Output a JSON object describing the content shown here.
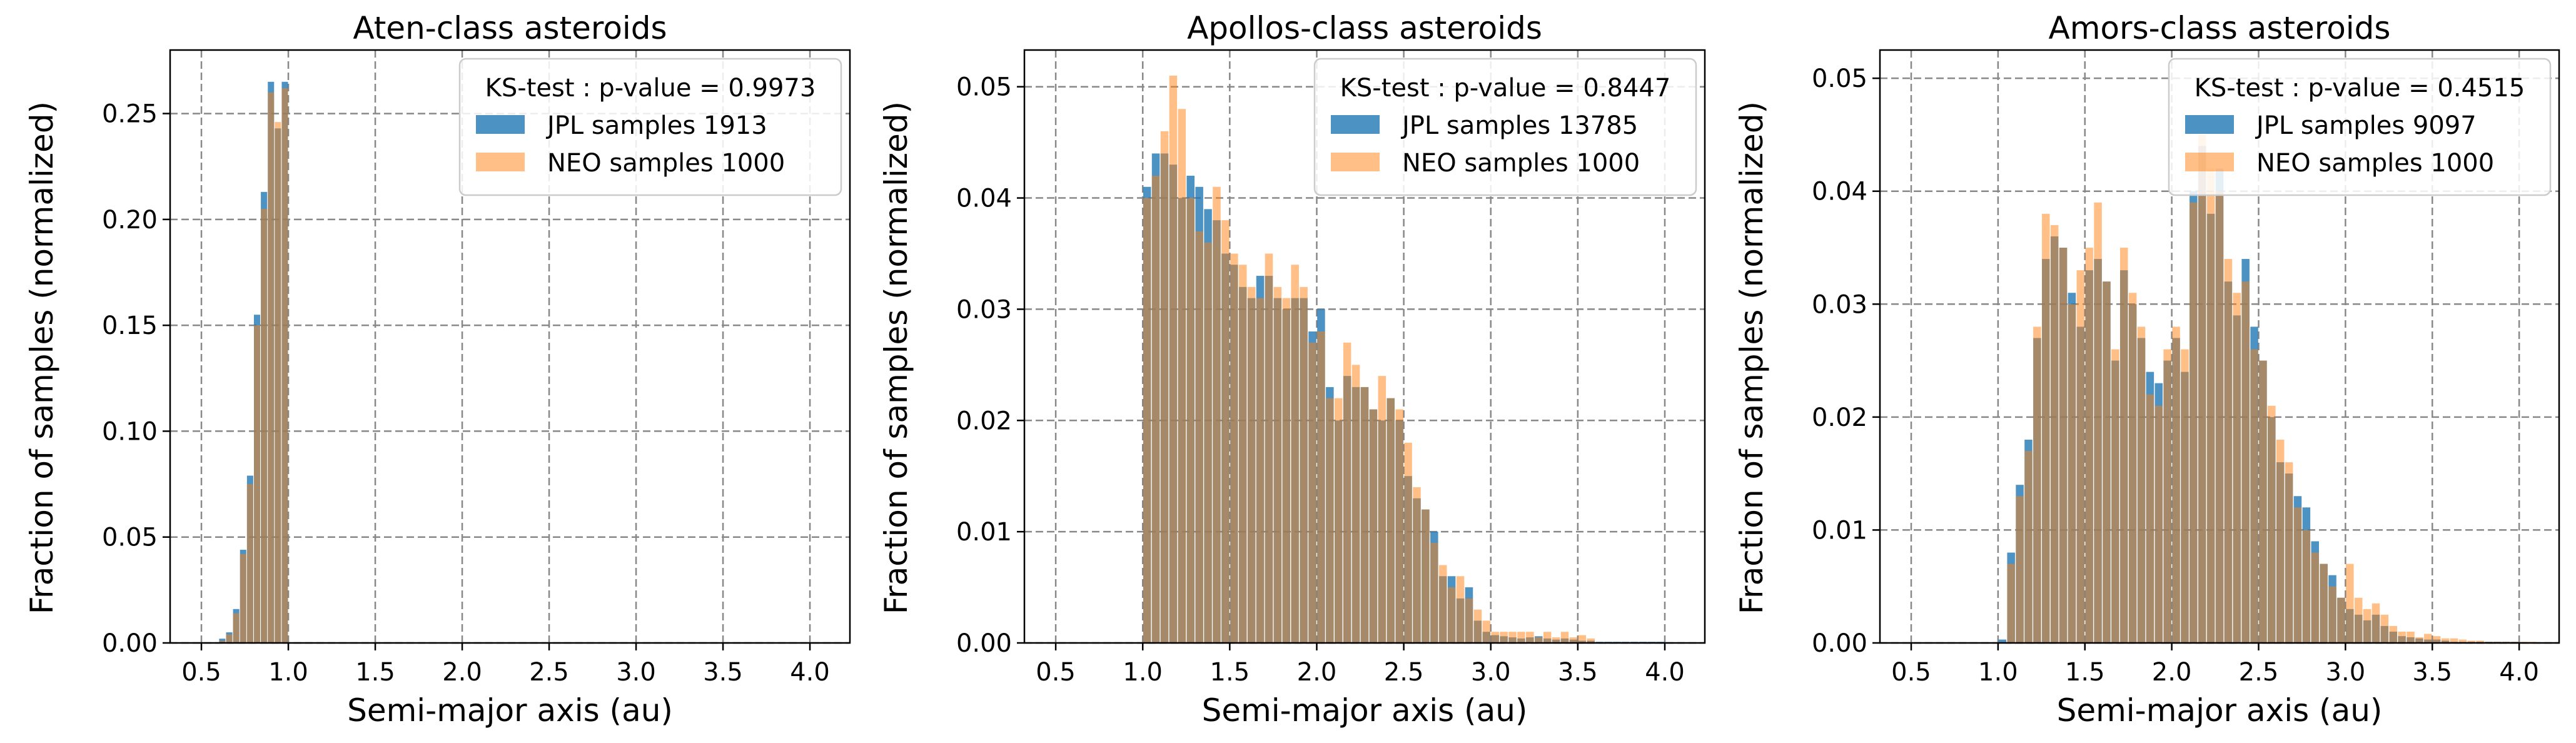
{
  "colors": {
    "jpl": "#1f77b4",
    "neo": "#ff7f0e",
    "grid": "#888888",
    "legend_border": "#cccccc"
  },
  "chart_data": [
    {
      "type": "bar",
      "title": "Aten-class asteroids",
      "xlabel": "Semi-major axis (au)",
      "ylabel": "Fraction of samples (normalized)",
      "xlim": [
        0.32,
        4.23
      ],
      "ylim": [
        0,
        0.28
      ],
      "xticks": [
        "0.5",
        "1.0",
        "1.5",
        "2.0",
        "2.5",
        "3.0",
        "3.5",
        "4.0"
      ],
      "yticks": [
        "0.00",
        "0.05",
        "0.10",
        "0.15",
        "0.20",
        "0.25"
      ],
      "grid": true,
      "legend_position": "top-right",
      "legend_title": "KS-test : p-value = 0.9973",
      "bin_width": 0.04,
      "series": [
        {
          "name": "JPL samples 1913",
          "x": [
            0.62,
            0.66,
            0.7,
            0.74,
            0.78,
            0.82,
            0.86,
            0.9,
            0.94,
            0.98
          ],
          "values": [
            0.002,
            0.005,
            0.016,
            0.044,
            0.079,
            0.155,
            0.213,
            0.265,
            0.243,
            0.265
          ]
        },
        {
          "name": "NEO samples 1000",
          "x": [
            0.62,
            0.66,
            0.7,
            0.74,
            0.78,
            0.82,
            0.86,
            0.9,
            0.94,
            0.98
          ],
          "values": [
            0.001,
            0.004,
            0.014,
            0.042,
            0.075,
            0.15,
            0.205,
            0.26,
            0.246,
            0.262
          ]
        }
      ]
    },
    {
      "type": "bar",
      "title": "Apollos-class asteroids",
      "xlabel": "Semi-major axis (au)",
      "ylabel": "Fraction of samples (normalized)",
      "xlim": [
        0.32,
        4.23
      ],
      "ylim": [
        0,
        0.0533
      ],
      "xticks": [
        "0.5",
        "1.0",
        "1.5",
        "2.0",
        "2.5",
        "3.0",
        "3.5",
        "4.0"
      ],
      "yticks": [
        "0.00",
        "0.01",
        "0.02",
        "0.03",
        "0.04",
        "0.05"
      ],
      "grid": true,
      "legend_position": "top-right",
      "legend_title": "KS-test : p-value = 0.8447",
      "bin_width": 0.05,
      "series": [
        {
          "name": "JPL samples 13785",
          "x": [
            1.025,
            1.075,
            1.125,
            1.175,
            1.225,
            1.275,
            1.325,
            1.375,
            1.425,
            1.475,
            1.525,
            1.575,
            1.625,
            1.675,
            1.725,
            1.775,
            1.825,
            1.875,
            1.925,
            1.975,
            2.025,
            2.075,
            2.125,
            2.175,
            2.225,
            2.275,
            2.325,
            2.375,
            2.425,
            2.475,
            2.525,
            2.575,
            2.625,
            2.675,
            2.725,
            2.775,
            2.825,
            2.875,
            2.925,
            2.975,
            3.025,
            3.075,
            3.125,
            3.175,
            3.225,
            3.275,
            3.325,
            3.375,
            3.425,
            3.475,
            3.525,
            3.575,
            3.625,
            3.675,
            3.725,
            3.775,
            3.825,
            3.875,
            3.925,
            3.975
          ],
          "values": [
            0.041,
            0.044,
            0.044,
            0.043,
            0.04,
            0.042,
            0.041,
            0.039,
            0.038,
            0.035,
            0.034,
            0.032,
            0.031,
            0.033,
            0.033,
            0.031,
            0.03,
            0.031,
            0.031,
            0.028,
            0.03,
            0.023,
            0.02,
            0.024,
            0.023,
            0.023,
            0.021,
            0.02,
            0.022,
            0.02,
            0.015,
            0.013,
            0.012,
            0.01,
            0.006,
            0.006,
            0.004,
            0.005,
            0.002,
            0.001,
            0.0007,
            0.0006,
            0.0005,
            0.0004,
            0.0005,
            0.0006,
            0.0004,
            0.0003,
            0.0004,
            0.0003,
            0.0002,
            0.0002,
            0.0001,
            0.0001,
            0.0001,
            0.0001,
            0.0001,
            0.0001,
            0.0001,
            0.0001
          ]
        },
        {
          "name": "NEO samples 1000",
          "x": [
            1.025,
            1.075,
            1.125,
            1.175,
            1.225,
            1.275,
            1.325,
            1.375,
            1.425,
            1.475,
            1.525,
            1.575,
            1.625,
            1.675,
            1.725,
            1.775,
            1.825,
            1.875,
            1.925,
            1.975,
            2.025,
            2.075,
            2.125,
            2.175,
            2.225,
            2.275,
            2.325,
            2.375,
            2.425,
            2.475,
            2.525,
            2.575,
            2.625,
            2.675,
            2.725,
            2.775,
            2.825,
            2.875,
            2.925,
            2.975,
            3.025,
            3.075,
            3.125,
            3.175,
            3.225,
            3.275,
            3.325,
            3.375,
            3.425,
            3.475,
            3.525,
            3.575
          ],
          "values": [
            0.04,
            0.042,
            0.046,
            0.051,
            0.048,
            0.04,
            0.037,
            0.036,
            0.041,
            0.038,
            0.035,
            0.034,
            0.032,
            0.031,
            0.035,
            0.032,
            0.031,
            0.034,
            0.032,
            0.027,
            0.028,
            0.022,
            0.022,
            0.027,
            0.025,
            0.023,
            0.021,
            0.024,
            0.022,
            0.021,
            0.018,
            0.014,
            0.012,
            0.009,
            0.007,
            0.005,
            0.006,
            0.004,
            0.003,
            0.002,
            0.001,
            0.001,
            0.001,
            0.001,
            0.001,
            0.0005,
            0.001,
            0.0005,
            0.001,
            0.0005,
            0.0007,
            0.0004
          ]
        }
      ]
    },
    {
      "type": "bar",
      "title": "Amors-class asteroids",
      "xlabel": "Semi-major axis (au)",
      "ylabel": "Fraction of samples (normalized)",
      "xlim": [
        0.32,
        4.23
      ],
      "ylim": [
        0,
        0.0525
      ],
      "xticks": [
        "0.5",
        "1.0",
        "1.5",
        "2.0",
        "2.5",
        "3.0",
        "3.5",
        "4.0"
      ],
      "yticks": [
        "0.00",
        "0.01",
        "0.02",
        "0.03",
        "0.04",
        "0.05"
      ],
      "grid": true,
      "legend_position": "top-right",
      "legend_title": "KS-test : p-value = 0.4515",
      "bin_width": 0.05,
      "series": [
        {
          "name": "JPL samples 9097",
          "x": [
            1.025,
            1.075,
            1.125,
            1.175,
            1.225,
            1.275,
            1.325,
            1.375,
            1.425,
            1.475,
            1.525,
            1.575,
            1.625,
            1.675,
            1.725,
            1.775,
            1.825,
            1.875,
            1.925,
            1.975,
            2.025,
            2.075,
            2.125,
            2.175,
            2.225,
            2.275,
            2.325,
            2.375,
            2.425,
            2.475,
            2.525,
            2.575,
            2.625,
            2.675,
            2.725,
            2.775,
            2.825,
            2.875,
            2.925,
            2.975,
            3.025,
            3.075,
            3.125,
            3.175,
            3.225,
            3.275,
            3.325,
            3.375,
            3.425,
            3.475,
            3.525,
            3.575,
            3.625,
            3.675,
            3.725,
            3.775,
            3.825,
            3.875,
            3.925,
            3.975
          ],
          "values": [
            0.0003,
            0.008,
            0.014,
            0.018,
            0.027,
            0.034,
            0.036,
            0.035,
            0.031,
            0.028,
            0.033,
            0.034,
            0.032,
            0.025,
            0.033,
            0.03,
            0.027,
            0.024,
            0.023,
            0.025,
            0.027,
            0.024,
            0.04,
            0.044,
            0.038,
            0.042,
            0.032,
            0.029,
            0.034,
            0.028,
            0.025,
            0.02,
            0.016,
            0.015,
            0.013,
            0.012,
            0.009,
            0.007,
            0.006,
            0.004,
            0.003,
            0.0025,
            0.002,
            0.0025,
            0.0015,
            0.001,
            0.0006,
            0.0005,
            0.0004,
            0.0003,
            0.0003,
            0.0002,
            0.0001,
            0.0001,
            0.0001,
            0.0001,
            0.0001,
            0.0001,
            0.0001,
            0.0001
          ]
        },
        {
          "name": "NEO samples 1000",
          "x": [
            1.025,
            1.075,
            1.125,
            1.175,
            1.225,
            1.275,
            1.325,
            1.375,
            1.425,
            1.475,
            1.525,
            1.575,
            1.625,
            1.675,
            1.725,
            1.775,
            1.825,
            1.875,
            1.925,
            1.975,
            2.025,
            2.075,
            2.125,
            2.175,
            2.225,
            2.275,
            2.325,
            2.375,
            2.425,
            2.475,
            2.525,
            2.575,
            2.625,
            2.675,
            2.725,
            2.775,
            2.825,
            2.875,
            2.925,
            2.975,
            3.025,
            3.075,
            3.125,
            3.175,
            3.225,
            3.275,
            3.325,
            3.375,
            3.425,
            3.475,
            3.525,
            3.575,
            3.625,
            3.675,
            3.725,
            3.775,
            3.825,
            3.875,
            3.925,
            3.975,
            4.025,
            4.075
          ],
          "values": [
            0.0,
            0.007,
            0.013,
            0.017,
            0.028,
            0.038,
            0.037,
            0.035,
            0.03,
            0.033,
            0.035,
            0.039,
            0.032,
            0.026,
            0.035,
            0.031,
            0.028,
            0.022,
            0.021,
            0.026,
            0.028,
            0.026,
            0.039,
            0.045,
            0.042,
            0.04,
            0.034,
            0.031,
            0.032,
            0.026,
            0.025,
            0.021,
            0.018,
            0.016,
            0.012,
            0.01,
            0.008,
            0.007,
            0.005,
            0.004,
            0.007,
            0.004,
            0.003,
            0.0035,
            0.0025,
            0.0015,
            0.001,
            0.001,
            0.0005,
            0.0008,
            0.0006,
            0.0004,
            0.0004,
            0.0003,
            0.0002,
            0.0002,
            0.0001,
            0.0001,
            0.0001,
            0.0001,
            0.0001,
            0.0001
          ]
        }
      ]
    }
  ]
}
